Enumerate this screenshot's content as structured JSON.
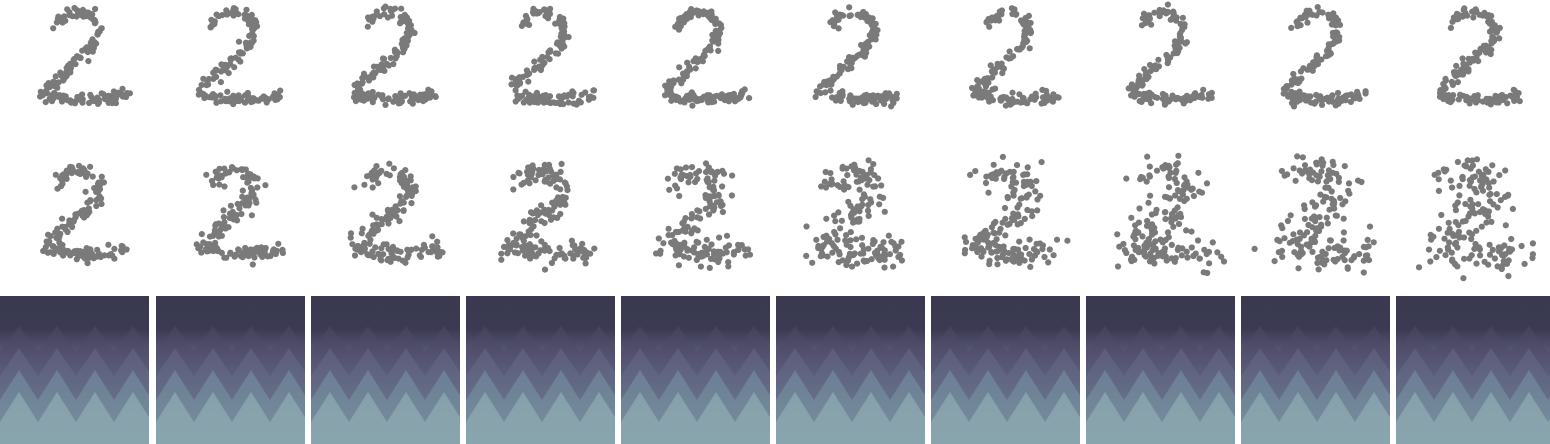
{
  "figure": {
    "columns": 10,
    "rows": [
      "target-digit-points",
      "sampled-points",
      "field-panels"
    ],
    "colors": {
      "point": "#7a7a7a",
      "background": "#ffffff",
      "field_top": "#3a3950",
      "field_mid": "#5f5d7d",
      "field_low": "#6d889a",
      "field_bottom": "#a3c6c4"
    },
    "point_shape": "digit-2"
  }
}
